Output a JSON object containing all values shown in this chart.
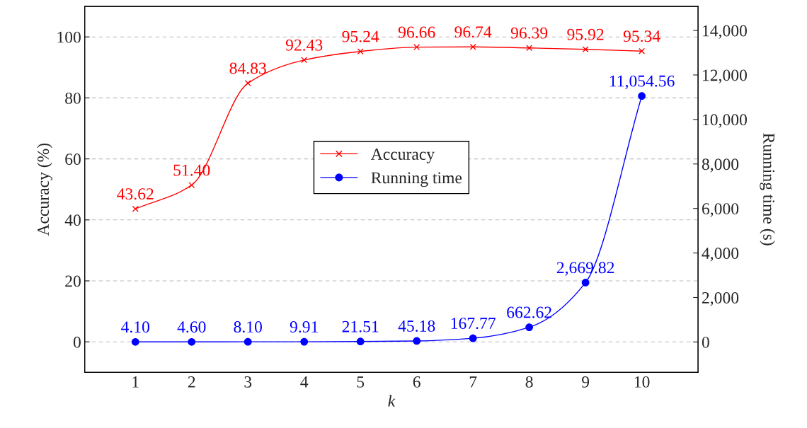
{
  "chart_data": {
    "type": "line",
    "xlabel": "k",
    "ylabel": "Accuracy (%)",
    "y2label": "Running time (s)",
    "x": [
      1,
      2,
      3,
      4,
      5,
      6,
      7,
      8,
      9,
      10
    ],
    "xlim": [
      0.1,
      11
    ],
    "xticks": [
      1,
      2,
      3,
      4,
      5,
      6,
      7,
      8,
      9,
      10
    ],
    "ylim": [
      -10,
      110
    ],
    "yticks": [
      0,
      20,
      40,
      60,
      80,
      100
    ],
    "y2lim": [
      -1365,
      15080
    ],
    "y2ticks": [
      0,
      {
        "value": 2000,
        "label": "2,000"
      },
      {
        "value": 4000,
        "label": "4,000"
      },
      {
        "value": 6000,
        "label": "6,000"
      },
      {
        "value": 8000,
        "label": "8,000"
      },
      {
        "value": 10000,
        "label": "10,000"
      },
      {
        "value": 12000,
        "label": "12,000"
      },
      {
        "value": 14000,
        "label": "14,000"
      }
    ],
    "grid": "y",
    "legend": "center",
    "series": [
      {
        "name": "Accuracy",
        "color": "#ff0000",
        "marker": "cross",
        "values": [
          43.62,
          51.4,
          84.83,
          92.43,
          95.24,
          96.66,
          96.74,
          96.39,
          95.92,
          95.34
        ],
        "value_labels": [
          "43.62",
          "51.40",
          "84.83",
          "92.43",
          "95.24",
          "96.66",
          "96.74",
          "96.39",
          "95.92",
          "95.34"
        ]
      },
      {
        "name": "Running time",
        "color": "#0000ff",
        "marker": "circle",
        "axis": "y2",
        "values": [
          4.1,
          4.6,
          8.1,
          9.91,
          21.51,
          45.18,
          167.77,
          662.62,
          2669.82,
          11054.56
        ],
        "value_labels": [
          "4.10",
          "4.60",
          "8.10",
          "9.91",
          "21.51",
          "45.18",
          "167.77",
          "662.62",
          "2,669.82",
          "11,054.56"
        ]
      }
    ]
  }
}
